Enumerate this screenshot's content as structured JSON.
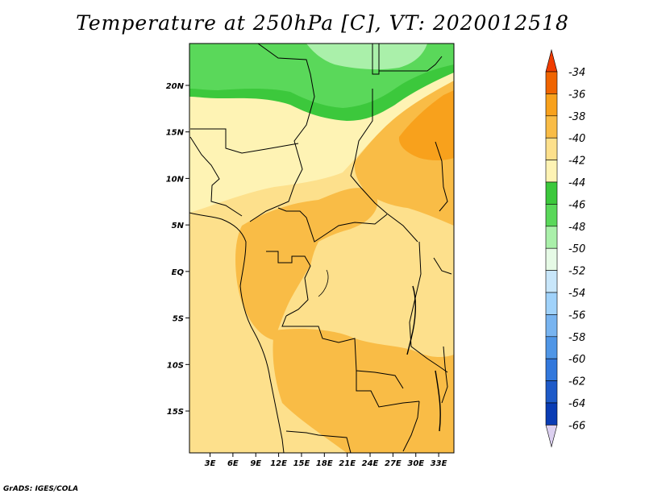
{
  "title": "Temperature at 250hPa [C], VT: 2020012518",
  "credit": "GrADS: IGES/COLA",
  "colors": {
    "green_dark": "#3cc83c",
    "green_mid": "#5ad85a",
    "green_light": "#aaf0aa",
    "pale_yellow": "#fef3b4",
    "yellow": "#fde08c",
    "orange_light": "#f9bc46",
    "orange": "#f8a11c",
    "border": "#000000"
  },
  "chart_data": {
    "type": "heatmap",
    "title": "Temperature at 250hPa [C], VT: 2020012518",
    "variable": "Temperature",
    "level": "250hPa",
    "units": "C",
    "valid_time": "2020012518",
    "x_ticks": [
      "3E",
      "6E",
      "9E",
      "12E",
      "15E",
      "18E",
      "21E",
      "24E",
      "27E",
      "30E",
      "33E"
    ],
    "x_tick_values": [
      3,
      6,
      9,
      12,
      15,
      18,
      21,
      24,
      27,
      30,
      33
    ],
    "y_ticks": [
      "20N",
      "15N",
      "10N",
      "5N",
      "EQ",
      "5S",
      "10S",
      "15S"
    ],
    "y_tick_values": [
      20,
      15,
      10,
      5,
      0,
      -5,
      -10,
      -15
    ],
    "xlim": [
      0.3,
      35
    ],
    "ylim": [
      -19.5,
      24.5
    ],
    "colorbar": {
      "labels": [
        "-34",
        "-36",
        "-38",
        "-40",
        "-42",
        "-44",
        "-46",
        "-48",
        "-50",
        "-52",
        "-54",
        "-56",
        "-58",
        "-60",
        "-62",
        "-64",
        "-66"
      ],
      "colors": [
        "#dc3c00",
        "#f06400",
        "#f8a11c",
        "#f9bc46",
        "#fde08c",
        "#fef3b4",
        "#3cc83c",
        "#5ad85a",
        "#aaf0aa",
        "#e6fae6",
        "#c8e6fa",
        "#a0d2fa",
        "#78b4f0",
        "#5096e6",
        "#3278dc",
        "#1e5ac8",
        "#0a3cb4",
        "#141478"
      ],
      "top_arrow_color": "#f03c00",
      "bottom_arrow_color": "#dcd0f0"
    },
    "regions": [
      {
        "range": "-48 to -50",
        "location": "northern Libya/Egypt coast, far north"
      },
      {
        "range": "-46 to -48",
        "location": "band ~19N-23N"
      },
      {
        "range": "-44 to -46",
        "location": "southern edge of green band ~17N-21N"
      },
      {
        "range": "-42 to -44",
        "location": "Sahel and Sahara interior 8N-17N; Congo Basin"
      },
      {
        "range": "-40 to -42",
        "location": "most of central Africa"
      },
      {
        "range": "-38 to -40",
        "location": "Gabon coast, Angola, Zambia, Sudan"
      },
      {
        "range": "-36 to -38",
        "location": "Egypt/Sudan northeast ~12N-19N"
      }
    ]
  }
}
